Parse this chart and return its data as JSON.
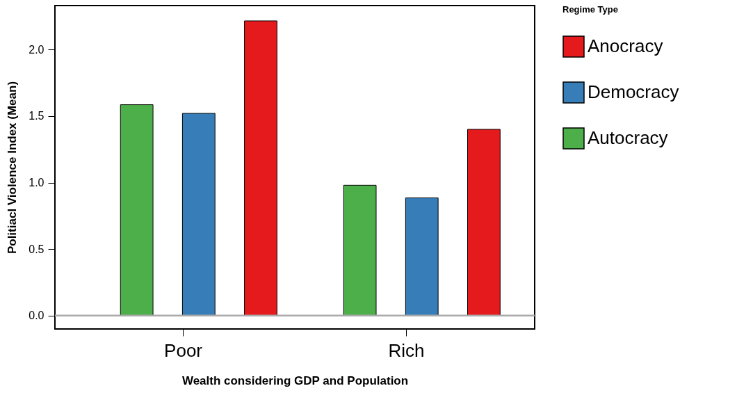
{
  "chart_data": {
    "type": "bar",
    "xlabel": "Wealth considering GDP and Population",
    "ylabel": "Politiacl Violence Index (Mean)",
    "legend_title": "Regime Type",
    "categories": [
      "Poor",
      "Rich"
    ],
    "series": [
      {
        "name": "Autocracy",
        "color": "#4daf4a",
        "values": [
          1.585,
          0.98
        ]
      },
      {
        "name": "Democracy",
        "color": "#377eb8",
        "values": [
          1.52,
          0.885
        ]
      },
      {
        "name": "Anocracy",
        "color": "#e41a1c",
        "values": [
          2.215,
          1.4
        ]
      }
    ],
    "ylim": [
      -0.1,
      2.33
    ],
    "yticks": [
      {
        "value": 0,
        "label": "0.0"
      },
      {
        "value": 0.5,
        "label": "0.5"
      },
      {
        "value": 1,
        "label": "1.0"
      },
      {
        "value": 1.5,
        "label": "1.5"
      },
      {
        "value": 2,
        "label": "2.0"
      }
    ],
    "ref_lines": [
      {
        "axis": "y",
        "value": 0,
        "color": "#aaaaaa"
      }
    ],
    "grid": false,
    "legend": "right"
  }
}
